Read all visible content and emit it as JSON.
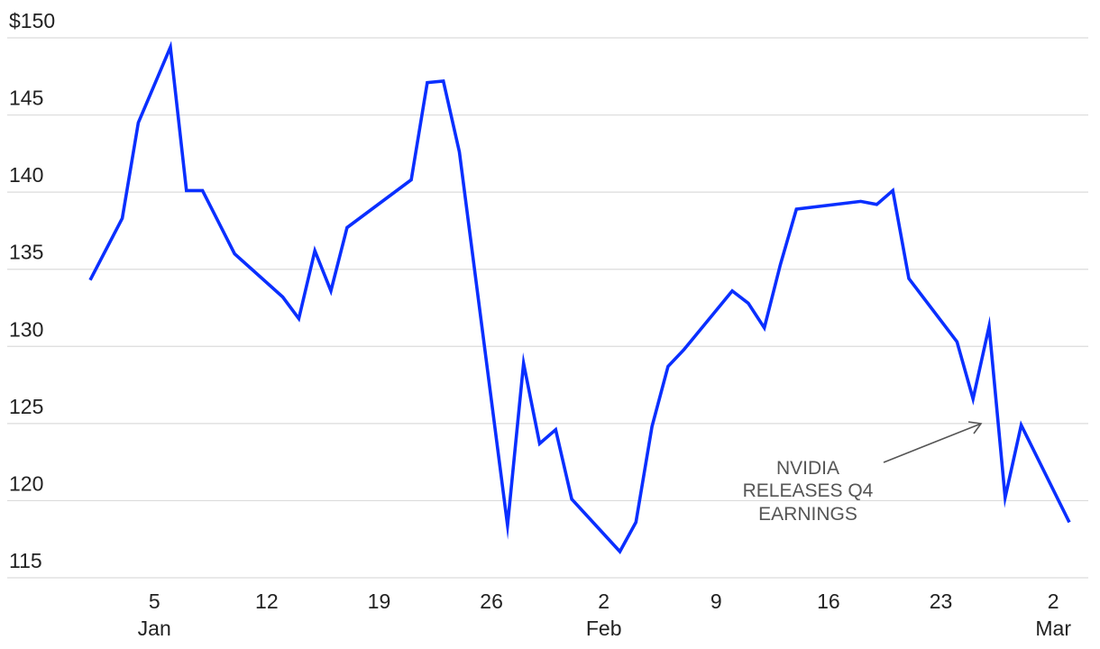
{
  "chart_data": {
    "type": "line",
    "title": "",
    "xlabel": "",
    "ylabel": "",
    "y_tick_labels": [
      "$150",
      "145",
      "140",
      "135",
      "130",
      "125",
      "120",
      "115"
    ],
    "y_tick_values": [
      150,
      145,
      140,
      135,
      130,
      125,
      120,
      115
    ],
    "ylim": [
      115,
      150
    ],
    "x_tick_labels": [
      {
        "day": "5",
        "month": "Jan",
        "date": "2025-01-05"
      },
      {
        "day": "12",
        "month": "",
        "date": "2025-01-12"
      },
      {
        "day": "19",
        "month": "",
        "date": "2025-01-19"
      },
      {
        "day": "26",
        "month": "",
        "date": "2025-01-26"
      },
      {
        "day": "2",
        "month": "Feb",
        "date": "2025-02-02"
      },
      {
        "day": "9",
        "month": "",
        "date": "2025-02-09"
      },
      {
        "day": "16",
        "month": "",
        "date": "2025-02-16"
      },
      {
        "day": "23",
        "month": "",
        "date": "2025-02-23"
      },
      {
        "day": "2",
        "month": "Mar",
        "date": "2025-03-02"
      }
    ],
    "xlim": [
      "2024-12-30",
      "2025-03-04"
    ],
    "grid": true,
    "line_color": "#0a2fff",
    "series": [
      {
        "x": [
          "2025-01-01",
          "2025-01-03",
          "2025-01-04",
          "2025-01-06",
          "2025-01-07",
          "2025-01-08",
          "2025-01-10",
          "2025-01-13",
          "2025-01-14",
          "2025-01-15",
          "2025-01-16",
          "2025-01-17",
          "2025-01-21",
          "2025-01-22",
          "2025-01-23",
          "2025-01-24",
          "2025-01-27",
          "2025-01-28",
          "2025-01-29",
          "2025-01-30",
          "2025-01-31",
          "2025-02-03",
          "2025-02-04",
          "2025-02-05",
          "2025-02-06",
          "2025-02-07",
          "2025-02-10",
          "2025-02-11",
          "2025-02-12",
          "2025-02-13",
          "2025-02-14",
          "2025-02-18",
          "2025-02-19",
          "2025-02-20",
          "2025-02-21",
          "2025-02-24",
          "2025-02-25",
          "2025-02-26",
          "2025-02-27",
          "2025-02-28",
          "2025-03-03"
        ],
        "values": [
          134.3,
          138.3,
          144.5,
          149.4,
          140.1,
          140.1,
          136.0,
          133.2,
          131.8,
          136.2,
          133.6,
          137.7,
          140.8,
          147.1,
          147.2,
          142.6,
          118.4,
          128.9,
          123.7,
          124.6,
          120.1,
          116.7,
          118.6,
          124.8,
          128.7,
          129.8,
          133.6,
          132.8,
          131.2,
          135.3,
          138.9,
          139.4,
          139.2,
          140.1,
          134.4,
          130.3,
          126.6,
          131.3,
          120.2,
          124.9,
          118.6
        ]
      }
    ],
    "annotations": [
      {
        "lines": [
          "NVIDIA",
          "RELEASES Q4",
          "EARNINGS"
        ],
        "arrow_to": {
          "date": "2025-02-25",
          "value": 125.1
        }
      }
    ]
  }
}
